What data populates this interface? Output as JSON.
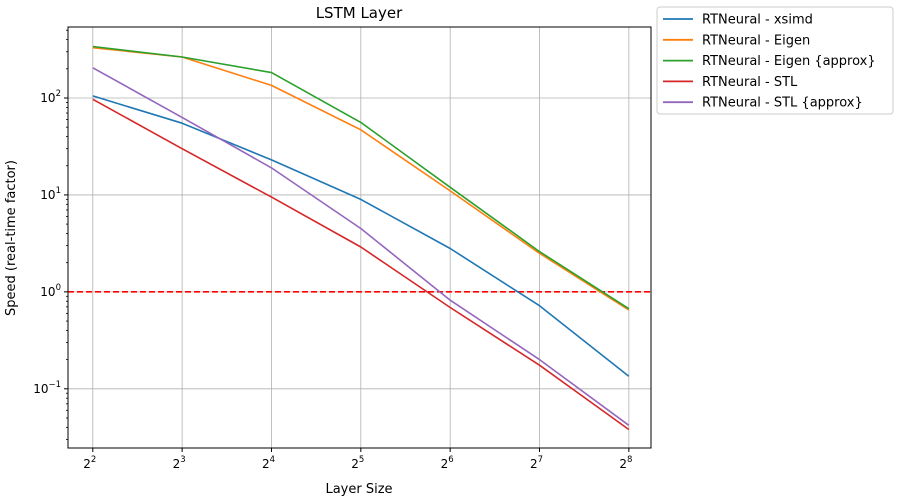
{
  "chart_data": {
    "type": "line",
    "title": "LSTM Layer",
    "xlabel": "Layer Size",
    "ylabel": "Speed (real-time factor)",
    "x_scale": "log2",
    "y_scale": "log10",
    "x": [
      4,
      8,
      16,
      32,
      64,
      128,
      256
    ],
    "x_tick_base": "2",
    "x_tick_exponents": [
      "2",
      "3",
      "4",
      "5",
      "6",
      "7",
      "8"
    ],
    "y_tick_base": "10",
    "y_tick_exponents": [
      "−1",
      "0",
      "1",
      "2"
    ],
    "xlim": [
      3.3,
      304
    ],
    "ylim": [
      0.0245,
      540
    ],
    "grid": true,
    "legend_position": "outside-top-right",
    "reference_line": {
      "y": 1,
      "color": "#ff0000",
      "style": "dashed"
    },
    "series": [
      {
        "name": "RTNeural - xsimd",
        "color": "#1f77b4",
        "values": [
          105,
          55,
          23,
          9,
          2.8,
          0.72,
          0.135
        ]
      },
      {
        "name": "RTNeural - Eigen",
        "color": "#ff7f0e",
        "values": [
          330,
          265,
          135,
          47,
          11,
          2.5,
          0.65
        ]
      },
      {
        "name": "RTNeural - Eigen {approx}",
        "color": "#2ca02c",
        "values": [
          340,
          265,
          183,
          56,
          12,
          2.6,
          0.67
        ]
      },
      {
        "name": "RTNeural - STL",
        "color": "#d62728",
        "values": [
          97,
          30,
          9.5,
          2.9,
          0.69,
          0.175,
          0.038
        ]
      },
      {
        "name": "RTNeural - STL {approx}",
        "color": "#9467bd",
        "values": [
          205,
          63,
          19,
          4.5,
          0.82,
          0.2,
          0.042
        ]
      }
    ]
  }
}
